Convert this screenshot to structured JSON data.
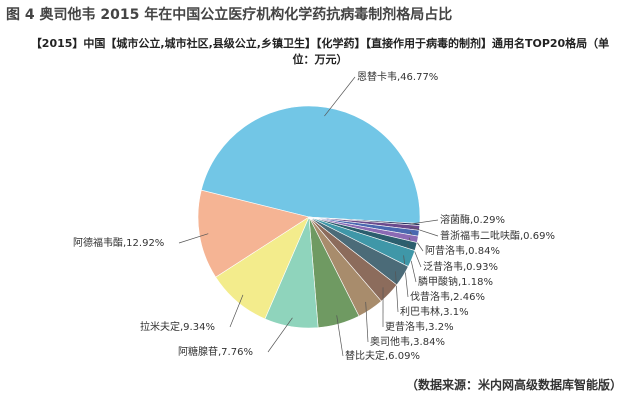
{
  "chart_data": {
    "type": "pie",
    "figure_title": "图 4 奥司他韦 2015 年在中国公立医疗机构化学药抗病毒制剂格局占比",
    "title": "【2015】中国【城市公立,城市社区,县级公立,乡镇卫生】【化学药】【直接作用于病毒的制剂】通用名TOP20格局（单位：万元）",
    "values": [
      46.77,
      0.29,
      0.69,
      0.84,
      0.93,
      1.18,
      2.46,
      3.1,
      3.2,
      3.84,
      6.09,
      7.76,
      9.34,
      12.92
    ],
    "value_labels": [
      "恩替卡韦,46.77%",
      "溶菌酶,0.29%",
      "普浙福韦二吡呋酯,0.69%",
      "阿昔洛韦,0.84%",
      "泛昔洛韦,0.93%",
      "膦甲酸钠,1.18%",
      "伐昔洛韦,2.46%",
      "利巴韦林,3.1%",
      "更昔洛韦,3.2%",
      "奥司他韦,3.84%",
      "替比夫定,6.09%",
      "阿糖腺苷,7.76%",
      "拉米夫定,9.34%",
      "阿德福韦酯,12.92%"
    ],
    "colors": [
      "#72c6e6",
      "#2a3560",
      "#6a4a8c",
      "#4a68b0",
      "#8a6ab4",
      "#2c5e6e",
      "#3f97a8",
      "#4b6b78",
      "#8c6c5c",
      "#a88c6c",
      "#6f9a62",
      "#8fd4bc",
      "#f3ec8c",
      "#f5b494"
    ],
    "source": "（数据来源：米内网高级数据库智能版）"
  }
}
